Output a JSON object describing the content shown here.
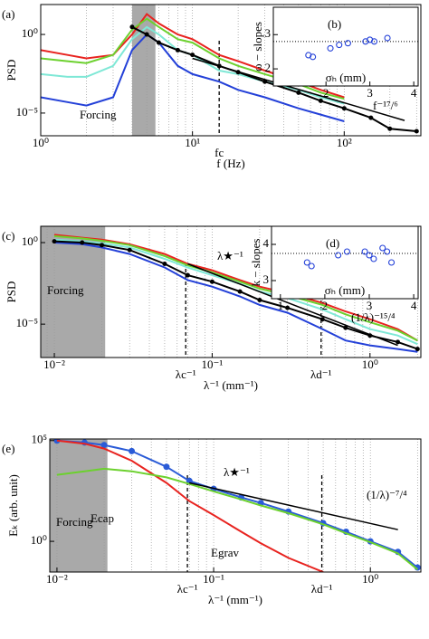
{
  "chart_data": [
    {
      "type": "line",
      "panel": "(a)",
      "ylabel": "PSD",
      "xlabel": "f (Hz)",
      "log": true,
      "grid": true,
      "xlim": [
        1,
        320
      ],
      "ylim": [
        3.6e-07,
        80
      ],
      "xticks": [
        {
          "value": 1,
          "label": "10⁰"
        },
        {
          "value": 10,
          "label": "10¹"
        },
        {
          "value": 100,
          "label": "10²"
        }
      ],
      "yticks": [
        {
          "value": 1e-05,
          "label": "10⁻⁵"
        },
        {
          "value": 1,
          "label": "10⁰"
        }
      ],
      "shade": [
        4,
        5.7
      ],
      "vlines": [
        {
          "value": 15,
          "label": "fc"
        }
      ],
      "x": [
        1,
        1.5,
        2,
        3,
        4,
        5,
        6,
        8,
        10,
        15,
        20,
        30,
        50,
        70,
        100
      ],
      "series": [
        {
          "color": "#e8231f",
          "values": [
            0.1,
            0.05,
            0.03,
            0.05,
            1,
            20,
            5,
            1,
            0.5,
            0.05,
            0.02,
            0.005,
            0.001,
            0.0003,
            0.0001
          ]
        },
        {
          "color": "#6cd12e",
          "values": [
            0.03,
            0.02,
            0.015,
            0.05,
            2,
            10,
            3,
            0.5,
            0.3,
            0.03,
            0.01,
            0.003,
            0.0007,
            0.0002,
            8e-05
          ]
        },
        {
          "color": "#7fe8d6",
          "values": [
            0.003,
            0.002,
            0.002,
            0.01,
            0.5,
            3,
            1,
            0.1,
            0.05,
            0.005,
            0.003,
            0.001,
            0.0003,
            0.0001,
            4e-05
          ]
        },
        {
          "color": "#2340d8",
          "values": [
            0.0001,
            5e-05,
            3e-05,
            0.0001,
            0.1,
            1,
            0.3,
            0.01,
            0.003,
            0.001,
            0.0003,
            0.0001,
            2e-05,
            8e-06,
            3e-06
          ]
        },
        {
          "color": "#000000",
          "markers": true,
          "x": [
            4,
            5,
            6,
            8,
            10,
            15,
            20,
            30,
            50,
            70,
            100,
            150,
            200,
            300
          ],
          "values": [
            3,
            1,
            0.3,
            0.1,
            0.05,
            0.01,
            0.004,
            0.001,
            0.0002,
            6e-05,
            2e-05,
            5e-06,
            1e-06,
            7e-07
          ]
        },
        {
          "color": "#000000",
          "x": [
            10,
            250
          ],
          "values": [
            0.03,
            3.4e-06
          ]
        }
      ],
      "annotations": [
        "Forcing",
        "f⁻¹⁷/⁶"
      ]
    },
    {
      "type": "scatter",
      "panel": "(b)",
      "ylabel": "ω − slopes",
      "xlabel": "σₕ (mm)",
      "xlim": [
        0.8,
        4.1
      ],
      "ylim": [
        1.5,
        3.8
      ],
      "xticks": [
        2,
        3,
        4
      ],
      "yticks": [
        2,
        3
      ],
      "hline": 2.8,
      "color": "#2340d8",
      "x": [
        1.6,
        1.7,
        2.1,
        2.3,
        2.5,
        2.9,
        3.0,
        3.1,
        3.4
      ],
      "values": [
        2.4,
        2.35,
        2.6,
        2.7,
        2.75,
        2.8,
        2.85,
        2.8,
        2.9
      ]
    },
    {
      "type": "line",
      "panel": "(c)",
      "ylabel": "PSD",
      "xlabel": "λ⁻¹ (mm⁻¹)",
      "log": true,
      "grid": true,
      "xlim": [
        0.0082,
        2.1
      ],
      "ylim": [
        9e-08,
        10
      ],
      "xticks": [
        {
          "value": 0.01,
          "label": "10⁻²"
        },
        {
          "value": 0.1,
          "label": "10⁻¹"
        },
        {
          "value": 1,
          "label": "10⁰"
        }
      ],
      "yticks": [
        {
          "value": 1e-05,
          "label": "10⁻⁵"
        },
        {
          "value": 1,
          "label": "10⁰"
        }
      ],
      "shade": [
        0.0082,
        0.021
      ],
      "vlines": [
        {
          "value": 0.068,
          "label": "λc⁻¹"
        },
        {
          "value": 0.49,
          "label": "λd⁻¹"
        }
      ],
      "x": [
        0.01,
        0.015,
        0.02,
        0.03,
        0.05,
        0.07,
        0.1,
        0.15,
        0.2,
        0.3,
        0.5,
        0.7,
        1,
        1.5,
        2
      ],
      "series": [
        {
          "color": "#e8231f",
          "values": [
            3,
            2,
            1.5,
            0.8,
            0.2,
            0.05,
            0.02,
            0.005,
            0.002,
            0.0008,
            0.0002,
            6e-05,
            2e-05,
            5e-06,
            1e-06
          ]
        },
        {
          "color": "#6cd12e",
          "values": [
            2.5,
            1.8,
            1.3,
            0.7,
            0.15,
            0.04,
            0.015,
            0.004,
            0.0015,
            0.0006,
            0.00015,
            4e-05,
            1.3e-05,
            4e-06,
            1e-06
          ]
        },
        {
          "color": "#7fe8d6",
          "values": [
            1.5,
            1.2,
            0.9,
            0.5,
            0.1,
            0.03,
            0.01,
            0.003,
            0.001,
            0.0004,
            8e-05,
            2e-05,
            5e-06,
            2e-06,
            6e-07
          ]
        },
        {
          "color": "#2340d8",
          "values": [
            1,
            0.8,
            0.5,
            0.2,
            0.03,
            0.005,
            0.002,
            0.0005,
            0.00015,
            5e-05,
            5e-06,
            1e-06,
            5e-07,
            3e-07,
            2e-07
          ]
        },
        {
          "color": "#000000",
          "markers": true,
          "values": [
            1.2,
            1,
            0.7,
            0.35,
            0.05,
            0.01,
            0.004,
            0.001,
            0.0003,
            0.0001,
            2e-05,
            6e-06,
            2e-06,
            8e-07,
            3e-07
          ]
        },
        {
          "color": "#000000",
          "x": [
            0.07,
            1.5
          ],
          "values": [
            0.05,
            5e-07
          ]
        }
      ],
      "annotations": [
        "Forcing",
        "λ★⁻¹",
        "(1/λ)⁻¹⁵/⁴"
      ]
    },
    {
      "type": "scatter",
      "panel": "(d)",
      "ylabel": "k − slopes",
      "xlabel": "σₕ (mm)",
      "xlim": [
        0.8,
        4.1
      ],
      "ylim": [
        2.5,
        4.5
      ],
      "xticks": [
        1,
        2,
        3,
        4
      ],
      "yticks": [
        3,
        4
      ],
      "hline": 3.75,
      "color": "#2340d8",
      "x": [
        1.6,
        1.7,
        2.3,
        2.5,
        2.9,
        3.0,
        3.1,
        3.3,
        3.4,
        3.5
      ],
      "values": [
        3.5,
        3.4,
        3.7,
        3.8,
        3.8,
        3.7,
        3.6,
        3.9,
        3.8,
        3.5
      ]
    },
    {
      "type": "line",
      "panel": "(e)",
      "ylabel": "Eₖ (arb. unit)",
      "xlabel": "λ⁻¹ (mm⁻¹)",
      "log": true,
      "grid": true,
      "xlim": [
        0.009,
        2.1
      ],
      "ylim": [
        0.03,
        120000
      ],
      "xticks": [
        {
          "value": 0.01,
          "label": "10⁻²"
        },
        {
          "value": 0.1,
          "label": "10⁻¹"
        },
        {
          "value": 1,
          "label": "10⁰"
        }
      ],
      "yticks": [
        {
          "value": 1,
          "label": "10⁰"
        },
        {
          "value": 100000,
          "label": "10⁵"
        }
      ],
      "shade": [
        0.009,
        0.021
      ],
      "vlines": [
        {
          "value": 0.068,
          "label": "λc⁻¹"
        },
        {
          "value": 0.49,
          "label": "λd⁻¹"
        }
      ],
      "x": [
        0.01,
        0.015,
        0.02,
        0.03,
        0.05,
        0.07,
        0.1,
        0.15,
        0.2,
        0.3,
        0.5,
        0.7,
        1,
        1.5,
        2
      ],
      "series": [
        {
          "color": "#2a5bd7",
          "markers": true,
          "values": [
            100000,
            80000,
            60000,
            30000,
            5000,
            1000,
            400,
            150,
            80,
            30,
            8,
            3,
            1,
            0.3,
            0.05
          ]
        },
        {
          "color": "#e8231f",
          "values": [
            100000,
            70000,
            40000,
            10000,
            800,
            100,
            20,
            3,
            0.8,
            0.15,
            0.03,
            null,
            null,
            null,
            null
          ]
        },
        {
          "color": "#6cd12e",
          "values": [
            2000,
            3000,
            4000,
            3000,
            1500,
            700,
            300,
            120,
            60,
            25,
            7,
            2.5,
            0.9,
            0.25,
            0.04
          ]
        },
        {
          "color": "#000000",
          "x": [
            0.07,
            1.5
          ],
          "values": [
            800,
            3.8
          ]
        }
      ],
      "annotations": [
        "Forcing",
        "λ★⁻¹",
        "Ecap",
        "Egrav",
        "(1/λ)⁻⁷/⁴"
      ]
    }
  ]
}
